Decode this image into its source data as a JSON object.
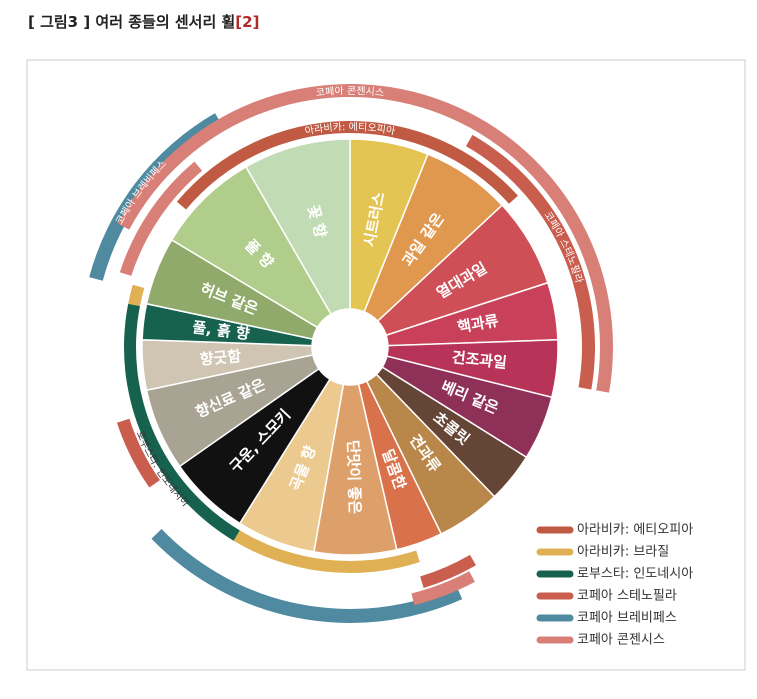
{
  "title": {
    "text": "[ 그림3 ] 여러 종들의 센서리 휠",
    "ref": "[2]"
  },
  "segments": [
    {
      "label": "시트러스",
      "color": "#e4c553"
    },
    {
      "label": "과일 같은",
      "color": "#e0974e"
    },
    {
      "label": "열대과일",
      "color": "#cf4f57"
    },
    {
      "label": "핵과류",
      "color": "#c9405a"
    },
    {
      "label": "건조과일",
      "color": "#b83358"
    },
    {
      "label": "베리 같은",
      "color": "#8f3058"
    },
    {
      "label": "초콜릿",
      "color": "#654535"
    },
    {
      "label": "견과류",
      "color": "#b98749"
    },
    {
      "label": "달콤한",
      "color": "#d9724a"
    },
    {
      "label": "단맛이 좋은",
      "color": "#dea06a"
    },
    {
      "label": "곡물 향",
      "color": "#ecc98e"
    },
    {
      "label": "구운, 스모키",
      "color": "#111111"
    },
    {
      "label": "향신료 같은",
      "color": "#a8a393"
    },
    {
      "label": "향긋함",
      "color": "#cfc5b2"
    },
    {
      "label": "풀, 흙 향",
      "color": "#17614f"
    },
    {
      "label": "허브 같은",
      "color": "#8faa6a"
    },
    {
      "label": "풀 향",
      "color": "#b1cd8c"
    },
    {
      "label": "꽃 향",
      "color": "#c1dbb4"
    }
  ],
  "legend": [
    {
      "label": "아라비카: 에티오피아",
      "color": "#c05a43"
    },
    {
      "label": "아라비카: 브라질",
      "color": "#e0b054"
    },
    {
      "label": "로부스타: 인도네시아",
      "color": "#17614f"
    },
    {
      "label": "코페아 스테노필라",
      "color": "#c95d4e"
    },
    {
      "label": "코페아 브레비페스",
      "color": "#4f8aa0"
    },
    {
      "label": "코페아 콘젠시스",
      "color": "#d87f78"
    }
  ]
}
